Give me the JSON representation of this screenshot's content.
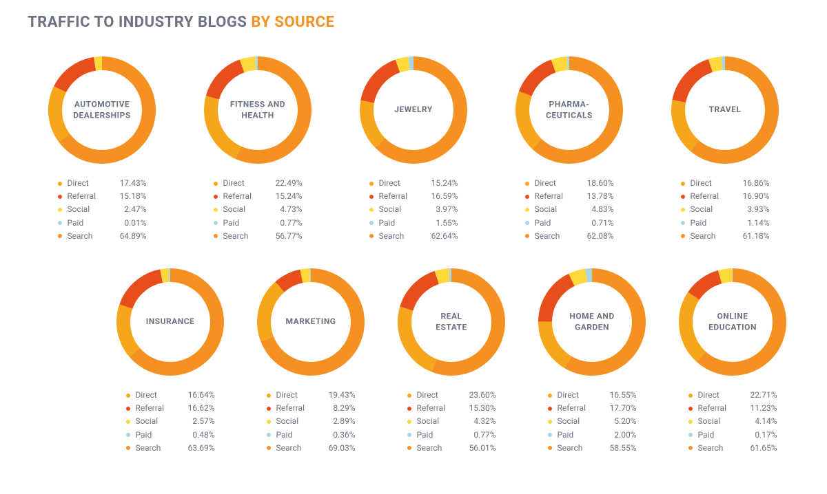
{
  "title_part1": "TRAFFIC TO INDUSTRY BLOGS ",
  "title_part2": "BY SOURCE",
  "colors": {
    "direct": "#f7a61b",
    "referral": "#e84e1b",
    "social": "#ffd93b",
    "paid": "#a9d6e5",
    "search": "#f59120",
    "text": "#6b7280",
    "background": "#ffffff"
  },
  "donut": {
    "outer_radius": 78,
    "stroke_width": 20,
    "start_angle_deg": -90
  },
  "sources": [
    {
      "key": "direct",
      "label": "Direct"
    },
    {
      "key": "referral",
      "label": "Referral"
    },
    {
      "key": "social",
      "label": "Social"
    },
    {
      "key": "paid",
      "label": "Paid"
    },
    {
      "key": "search",
      "label": "Search"
    }
  ],
  "industries_row1": [
    {
      "name": "AUTOMOTIVE DEALERSHIPS",
      "values": {
        "direct": 17.43,
        "referral": 15.18,
        "social": 2.47,
        "paid": 0.01,
        "search": 64.89
      }
    },
    {
      "name": "FITNESS AND HEALTH",
      "values": {
        "direct": 22.49,
        "referral": 15.24,
        "social": 4.73,
        "paid": 0.77,
        "search": 56.77
      }
    },
    {
      "name": "JEWELRY",
      "values": {
        "direct": 15.24,
        "referral": 16.59,
        "social": 3.97,
        "paid": 1.55,
        "search": 62.64
      }
    },
    {
      "name": "PHARMA-\nCEUTICALS",
      "values": {
        "direct": 18.6,
        "referral": 13.78,
        "social": 4.83,
        "paid": 0.71,
        "search": 62.08
      }
    },
    {
      "name": "TRAVEL",
      "values": {
        "direct": 16.86,
        "referral": 16.9,
        "social": 3.93,
        "paid": 1.14,
        "search": 61.18
      }
    }
  ],
  "industries_row2": [
    {
      "name": "INSURANCE",
      "values": {
        "direct": 16.64,
        "referral": 16.62,
        "social": 2.57,
        "paid": 0.48,
        "search": 63.69
      }
    },
    {
      "name": "MARKETING",
      "values": {
        "direct": 19.43,
        "referral": 8.29,
        "social": 2.89,
        "paid": 0.36,
        "search": 69.03
      }
    },
    {
      "name": "REAL ESTATE",
      "values": {
        "direct": 23.6,
        "referral": 15.3,
        "social": 4.32,
        "paid": 0.77,
        "search": 56.01
      }
    },
    {
      "name": "HOME AND GARDEN",
      "values": {
        "direct": 16.55,
        "referral": 17.7,
        "social": 5.2,
        "paid": 2.0,
        "search": 58.55
      }
    },
    {
      "name": "ONLINE EDUCATION",
      "values": {
        "direct": 22.71,
        "referral": 11.23,
        "social": 4.14,
        "paid": 0.17,
        "search": 61.65
      }
    }
  ]
}
